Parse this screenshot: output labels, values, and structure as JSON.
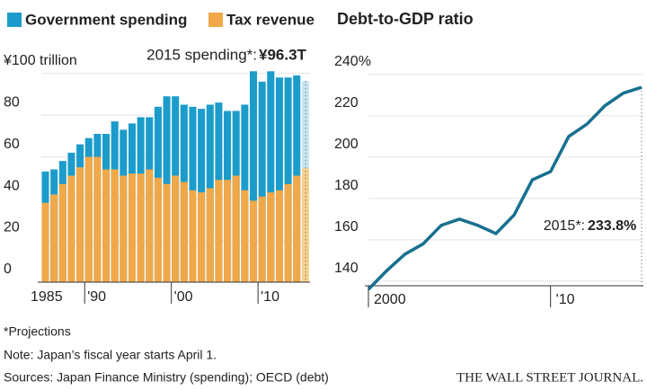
{
  "chart_data": [
    {
      "type": "bar",
      "barmode": "overlay",
      "categories": [
        "1985",
        null,
        null,
        null,
        null,
        "'90",
        null,
        null,
        null,
        null,
        null,
        null,
        null,
        null,
        null,
        "'00",
        null,
        null,
        null,
        null,
        null,
        null,
        null,
        null,
        null,
        "'10",
        null,
        null,
        null,
        null,
        null
      ],
      "series": [
        {
          "name": "Government spending",
          "color": "#1b9ccb",
          "projection_color": "#c6e4f0",
          "values": [
            53,
            54,
            58,
            62,
            66,
            69,
            71,
            71,
            77,
            73,
            76,
            79,
            79,
            84,
            89,
            89,
            85,
            84,
            83,
            85,
            86,
            82,
            82,
            85,
            101,
            96,
            101,
            98,
            98,
            99,
            96.3
          ],
          "value_labels": [
            null,
            null,
            null,
            null,
            null,
            null,
            null,
            null,
            null,
            null,
            null,
            null,
            null,
            null,
            null,
            null,
            null,
            null,
            null,
            null,
            null,
            null,
            null,
            null,
            null,
            null,
            null,
            null,
            null,
            null,
            "¥96.3T"
          ]
        },
        {
          "name": "Tax revenue",
          "color": "#f0a848",
          "projection_color": "#f7cf8f",
          "values": [
            38,
            42,
            47,
            51,
            55,
            60,
            60,
            54,
            54,
            51,
            52,
            52,
            54,
            50,
            47,
            51,
            48,
            44,
            43,
            45,
            49,
            49,
            51,
            44,
            39,
            41,
            43,
            44,
            47,
            51,
            54.5
          ]
        }
      ],
      "projected": [
        false,
        false,
        false,
        false,
        false,
        false,
        false,
        false,
        false,
        false,
        false,
        false,
        false,
        false,
        false,
        false,
        false,
        false,
        false,
        false,
        false,
        false,
        false,
        false,
        false,
        false,
        false,
        false,
        false,
        false,
        true
      ],
      "annotation": "2015 spending*:",
      "ylim": [
        0,
        105
      ],
      "yticks": [
        0,
        20,
        40,
        60,
        80,
        {
          "value": 100,
          "label": "¥100 trillion"
        }
      ],
      "grid": true
    },
    {
      "type": "line",
      "title": "Debt-to-GDP ratio",
      "color": "#17708f",
      "x": [
        2000,
        2001,
        2002,
        2003,
        2004,
        2005,
        2006,
        2007,
        2008,
        2009,
        2010,
        2011,
        2012,
        2013,
        2014,
        2015
      ],
      "values": [
        136,
        145,
        153,
        158,
        167,
        170,
        167,
        163,
        172,
        189,
        193,
        210,
        216,
        225,
        231,
        233.8
      ],
      "value_labels": [
        null,
        null,
        null,
        null,
        null,
        null,
        null,
        null,
        null,
        null,
        null,
        null,
        null,
        null,
        null,
        "233.8%"
      ],
      "annotation": "2015*:",
      "xlim": [
        2000,
        2015
      ],
      "xticks": [
        2000,
        {
          "value": 2010,
          "label": "'10"
        }
      ],
      "ylim": [
        136,
        243
      ],
      "yticks": [
        140,
        160,
        180,
        200,
        220,
        {
          "value": 240,
          "label": "240%"
        }
      ],
      "grid": true
    }
  ],
  "footnotes": [
    "*Projections",
    "Note: Japan’s fiscal year starts April 1.",
    "Sources: Japan Finance Ministry (spending); OECD (debt)"
  ],
  "credit": "THE WALL STREET JOURNAL."
}
